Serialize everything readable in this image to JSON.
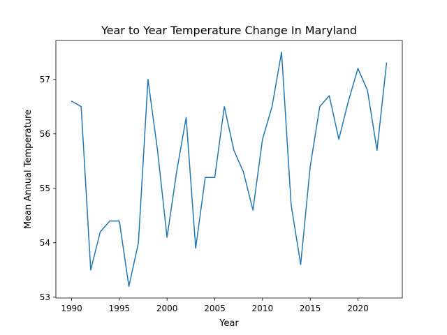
{
  "chart_data": {
    "type": "line",
    "title": "Year to Year Temperature Change In Maryland",
    "xlabel": "Year",
    "ylabel": "Mean Annual Temperature",
    "xlim": [
      1988.35,
      2024.65
    ],
    "ylim": [
      52.985,
      57.715
    ],
    "xticks": [
      1990,
      1995,
      2000,
      2005,
      2010,
      2015,
      2020
    ],
    "yticks": [
      53,
      54,
      55,
      56,
      57
    ],
    "grid": false,
    "legend": "none",
    "line_color": "#1f77b4",
    "series": [
      {
        "x": [
          1990,
          1991,
          1992,
          1993,
          1994,
          1995,
          1996,
          1997,
          1998,
          1999,
          2000,
          2001,
          2002,
          2003,
          2004,
          2005,
          2006,
          2007,
          2008,
          2009,
          2010,
          2011,
          2012,
          2013,
          2014,
          2015,
          2016,
          2017,
          2018,
          2019,
          2020,
          2021,
          2022,
          2023
        ],
        "values": [
          56.6,
          56.5,
          53.5,
          54.2,
          54.4,
          54.4,
          53.2,
          54.0,
          57.0,
          55.7,
          54.1,
          55.3,
          56.3,
          53.9,
          55.2,
          55.2,
          56.5,
          55.7,
          55.3,
          54.6,
          55.9,
          56.5,
          57.5,
          54.7,
          53.6,
          55.4,
          56.5,
          56.7,
          55.9,
          56.6,
          57.2,
          56.8,
          55.7,
          57.3
        ]
      }
    ]
  }
}
